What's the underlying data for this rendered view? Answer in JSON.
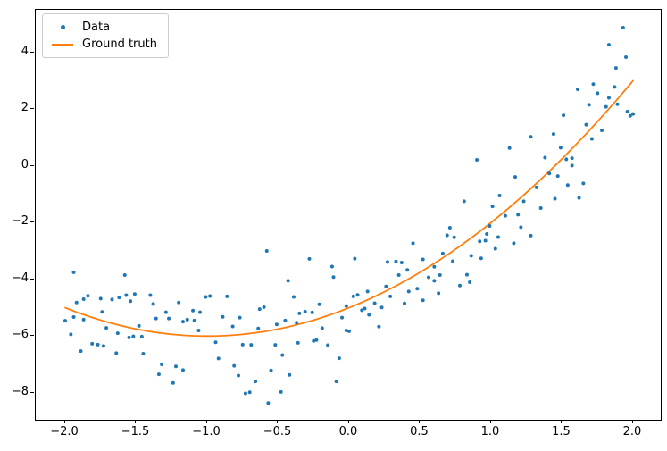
{
  "figure": {
    "background": "#ffffff",
    "spine_color": "#000000",
    "axes": {
      "xlim": [
        -2.2075,
        2.195
      ],
      "ylim": [
        -8.95,
        5.5
      ],
      "x_ticks": [
        {
          "value": -2.0,
          "label": "−2.0"
        },
        {
          "value": -1.5,
          "label": "−1.5"
        },
        {
          "value": -1.0,
          "label": "−1.0"
        },
        {
          "value": -0.5,
          "label": "−0.5"
        },
        {
          "value": 0.0,
          "label": "0.0"
        },
        {
          "value": 0.5,
          "label": "0.5"
        },
        {
          "value": 1.0,
          "label": "1.0"
        },
        {
          "value": 1.5,
          "label": "1.5"
        },
        {
          "value": 2.0,
          "label": "2.0"
        }
      ],
      "y_ticks": [
        {
          "value": 4,
          "label": "4"
        },
        {
          "value": 2,
          "label": "2"
        },
        {
          "value": 0,
          "label": "0"
        },
        {
          "value": -2,
          "label": "−2"
        },
        {
          "value": -4,
          "label": "−4"
        },
        {
          "value": -6,
          "label": "−6"
        },
        {
          "value": -8,
          "label": "−8"
        }
      ]
    },
    "legend": {
      "items": [
        {
          "label": "Data",
          "marker": "dot",
          "color": "#1f77b4"
        },
        {
          "label": "Ground truth",
          "marker": "line",
          "color": "#ff7f0e"
        }
      ]
    }
  },
  "chart_data": {
    "type": "scatter",
    "title": "",
    "xlabel": "",
    "ylabel": "",
    "grid": false,
    "legend_position": "upper left",
    "xlim": [
      -2.2075,
      2.195
    ],
    "ylim": [
      -8.95,
      5.5
    ],
    "series": [
      {
        "name": "Data",
        "type": "scatter",
        "color": "#1f77b4",
        "marker_radius": 2,
        "points": [
          [
            -2.0,
            -5.46
          ],
          [
            -1.96,
            -5.94
          ],
          [
            -1.94,
            -5.33
          ],
          [
            -1.94,
            -3.75
          ],
          [
            -1.92,
            -4.82
          ],
          [
            -1.89,
            -6.53
          ],
          [
            -1.87,
            -5.42
          ],
          [
            -1.87,
            -4.7
          ],
          [
            -1.84,
            -4.58
          ],
          [
            -1.81,
            -6.27
          ],
          [
            -1.77,
            -6.3
          ],
          [
            -1.75,
            -4.68
          ],
          [
            -1.74,
            -5.15
          ],
          [
            -1.73,
            -6.35
          ],
          [
            -1.71,
            -5.71
          ],
          [
            -1.67,
            -4.71
          ],
          [
            -1.64,
            -6.6
          ],
          [
            -1.63,
            -5.9
          ],
          [
            -1.62,
            -4.64
          ],
          [
            -1.58,
            -3.85
          ],
          [
            -1.57,
            -4.56
          ],
          [
            -1.55,
            -6.05
          ],
          [
            -1.54,
            -4.77
          ],
          [
            -1.52,
            -6.01
          ],
          [
            -1.51,
            -4.52
          ],
          [
            -1.48,
            -5.64
          ],
          [
            -1.46,
            -6.02
          ],
          [
            -1.45,
            -6.62
          ],
          [
            -1.4,
            -4.56
          ],
          [
            -1.38,
            -4.87
          ],
          [
            -1.36,
            -5.38
          ],
          [
            -1.34,
            -7.35
          ],
          [
            -1.32,
            -7.0
          ],
          [
            -1.29,
            -5.16
          ],
          [
            -1.27,
            -5.38
          ],
          [
            -1.24,
            -7.65
          ],
          [
            -1.22,
            -7.07
          ],
          [
            -1.2,
            -4.82
          ],
          [
            -1.17,
            -7.2
          ],
          [
            -1.17,
            -5.49
          ],
          [
            -1.14,
            -5.42
          ],
          [
            -1.1,
            -5.1
          ],
          [
            -1.09,
            -5.45
          ],
          [
            -1.06,
            -5.8
          ],
          [
            -1.05,
            -5.16
          ],
          [
            -1.01,
            -4.62
          ],
          [
            -0.98,
            -4.59
          ],
          [
            -0.94,
            -6.22
          ],
          [
            -0.92,
            -6.79
          ],
          [
            -0.89,
            -5.32
          ],
          [
            -0.86,
            -4.6
          ],
          [
            -0.82,
            -5.66
          ],
          [
            -0.81,
            -7.05
          ],
          [
            -0.78,
            -7.39
          ],
          [
            -0.77,
            -5.35
          ],
          [
            -0.75,
            -6.3
          ],
          [
            -0.73,
            -8.02
          ],
          [
            -0.7,
            -7.98
          ],
          [
            -0.69,
            -6.31
          ],
          [
            -0.66,
            -7.6
          ],
          [
            -0.64,
            -5.73
          ],
          [
            -0.63,
            -5.05
          ],
          [
            -0.6,
            -4.98
          ],
          [
            -0.58,
            -3.0
          ],
          [
            -0.57,
            -8.36
          ],
          [
            -0.55,
            -7.21
          ],
          [
            -0.52,
            -6.31
          ],
          [
            -0.51,
            -5.59
          ],
          [
            -0.48,
            -7.97
          ],
          [
            -0.47,
            -6.67
          ],
          [
            -0.45,
            -5.45
          ],
          [
            -0.43,
            -4.05
          ],
          [
            -0.42,
            -7.37
          ],
          [
            -0.39,
            -4.62
          ],
          [
            -0.37,
            -5.53
          ],
          [
            -0.36,
            -6.24
          ],
          [
            -0.35,
            -5.2
          ],
          [
            -0.31,
            -5.14
          ],
          [
            -0.28,
            -3.28
          ],
          [
            -0.26,
            -5.17
          ],
          [
            -0.25,
            -6.17
          ],
          [
            -0.23,
            -6.14
          ],
          [
            -0.21,
            -4.88
          ],
          [
            -0.19,
            -5.72
          ],
          [
            -0.15,
            -6.32
          ],
          [
            -0.12,
            -3.55
          ],
          [
            -0.11,
            -3.92
          ],
          [
            -0.09,
            -7.6
          ],
          [
            -0.07,
            -6.78
          ],
          [
            -0.05,
            -5.35
          ],
          [
            -0.02,
            -5.8
          ],
          [
            -0.02,
            -4.94
          ],
          [
            0.0,
            -5.83
          ],
          [
            0.03,
            -4.6
          ],
          [
            0.04,
            -3.27
          ],
          [
            0.06,
            -4.55
          ],
          [
            0.09,
            -5.09
          ],
          [
            0.11,
            -5.03
          ],
          [
            0.13,
            -4.43
          ],
          [
            0.14,
            -5.25
          ],
          [
            0.18,
            -4.84
          ],
          [
            0.21,
            -5.67
          ],
          [
            0.23,
            -4.99
          ],
          [
            0.26,
            -4.25
          ],
          [
            0.27,
            -3.39
          ],
          [
            0.29,
            -4.6
          ],
          [
            0.33,
            -3.37
          ],
          [
            0.35,
            -3.85
          ],
          [
            0.37,
            -3.41
          ],
          [
            0.39,
            -4.85
          ],
          [
            0.41,
            -3.67
          ],
          [
            0.42,
            -4.43
          ],
          [
            0.45,
            -2.73
          ],
          [
            0.48,
            -4.33
          ],
          [
            0.52,
            -3.3
          ],
          [
            0.52,
            -4.74
          ],
          [
            0.56,
            -3.93
          ],
          [
            0.6,
            -4.05
          ],
          [
            0.6,
            -3.56
          ],
          [
            0.63,
            -4.49
          ],
          [
            0.64,
            -3.85
          ],
          [
            0.66,
            -3.09
          ],
          [
            0.69,
            -2.45
          ],
          [
            0.71,
            -2.18
          ],
          [
            0.73,
            -3.36
          ],
          [
            0.74,
            -2.52
          ],
          [
            0.78,
            -4.22
          ],
          [
            0.81,
            -1.25
          ],
          [
            0.83,
            -3.84
          ],
          [
            0.85,
            -4.1
          ],
          [
            0.86,
            -3.17
          ],
          [
            0.9,
            0.21
          ],
          [
            0.92,
            -2.66
          ],
          [
            0.93,
            -3.26
          ],
          [
            0.96,
            -2.64
          ],
          [
            0.97,
            -2.4
          ],
          [
            0.99,
            -2.12
          ],
          [
            1.01,
            -1.43
          ],
          [
            1.03,
            -2.92
          ],
          [
            1.05,
            -2.51
          ],
          [
            1.06,
            -1.05
          ],
          [
            1.1,
            -1.76
          ],
          [
            1.13,
            0.63
          ],
          [
            1.16,
            -2.73
          ],
          [
            1.17,
            -0.39
          ],
          [
            1.19,
            -1.72
          ],
          [
            1.21,
            -2.16
          ],
          [
            1.23,
            -1.25
          ],
          [
            1.28,
            -2.46
          ],
          [
            1.28,
            1.02
          ],
          [
            1.32,
            -0.76
          ],
          [
            1.35,
            -1.49
          ],
          [
            1.38,
            0.29
          ],
          [
            1.41,
            -0.27
          ],
          [
            1.44,
            1.12
          ],
          [
            1.45,
            -1.16
          ],
          [
            1.47,
            -0.36
          ],
          [
            1.49,
            0.64
          ],
          [
            1.51,
            1.78
          ],
          [
            1.53,
            0.23
          ],
          [
            1.54,
            -0.68
          ],
          [
            1.57,
            0.27
          ],
          [
            1.57,
            0.01
          ],
          [
            1.61,
            2.7
          ],
          [
            1.62,
            -1.13
          ],
          [
            1.65,
            -0.62
          ],
          [
            1.67,
            1.45
          ],
          [
            1.69,
            2.15
          ],
          [
            1.71,
            0.95
          ],
          [
            1.72,
            2.88
          ],
          [
            1.75,
            2.56
          ],
          [
            1.78,
            1.25
          ],
          [
            1.81,
            2.08
          ],
          [
            1.83,
            2.4
          ],
          [
            1.83,
            4.27
          ],
          [
            1.87,
            2.78
          ],
          [
            1.88,
            3.45
          ],
          [
            1.89,
            2.17
          ],
          [
            1.93,
            4.87
          ],
          [
            1.95,
            3.83
          ],
          [
            1.96,
            1.91
          ],
          [
            1.98,
            1.76
          ],
          [
            2.0,
            1.83
          ]
        ]
      },
      {
        "name": "Ground truth",
        "type": "line",
        "color": "#ff7f0e",
        "line_width": 1.8,
        "formula": "y = x^2 + 2x - 5",
        "poly_coefficients": [
          1,
          2,
          -5
        ],
        "x_range": [
          -2,
          2
        ]
      }
    ]
  }
}
